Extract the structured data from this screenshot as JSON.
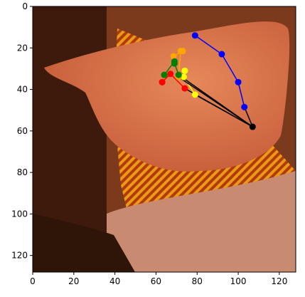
{
  "chart_data": {
    "type": "scatter",
    "title": "",
    "xlabel": "",
    "ylabel": "",
    "xlim": [
      0,
      128
    ],
    "ylim": [
      128,
      0
    ],
    "grid": false,
    "x_ticks": [
      0,
      20,
      40,
      60,
      80,
      100,
      120
    ],
    "y_ticks": [
      0,
      20,
      40,
      60,
      80,
      100,
      120
    ],
    "x_tick_labels": [
      "0",
      "20",
      "40",
      "60",
      "80",
      "100",
      "120"
    ],
    "y_tick_labels": [
      "0",
      "20",
      "40",
      "60",
      "80",
      "100",
      "120"
    ],
    "wrist": [
      107,
      58
    ],
    "series": [
      {
        "color": "#0000ff",
        "points": [
          [
            107,
            58
          ],
          [
            103,
            48.5
          ],
          [
            100,
            36.5
          ],
          [
            92,
            23
          ],
          [
            79,
            14
          ]
        ]
      },
      {
        "color": "#ffff00",
        "points": [
          [
            107,
            58
          ],
          [
            79,
            42.5
          ],
          [
            73.5,
            34
          ],
          [
            74,
            31
          ],
          [
            74,
            31
          ]
        ]
      },
      {
        "color": "#ffa500",
        "points": [
          [
            107,
            58
          ],
          [
            71,
            34
          ],
          [
            72,
            21.5
          ],
          [
            73,
            21.5
          ],
          [
            68.5,
            24
          ]
        ]
      },
      {
        "color": "#008000",
        "points": [
          [
            107,
            58
          ],
          [
            71,
            33
          ],
          [
            69,
            27.5
          ],
          [
            69,
            26.5
          ],
          [
            64,
            33
          ]
        ]
      },
      {
        "color": "#ff0000",
        "points": [
          [
            107,
            58
          ],
          [
            74,
            39.5
          ],
          [
            67,
            32.5
          ],
          [
            63,
            36.5
          ],
          [
            63,
            36.5
          ]
        ]
      }
    ]
  }
}
